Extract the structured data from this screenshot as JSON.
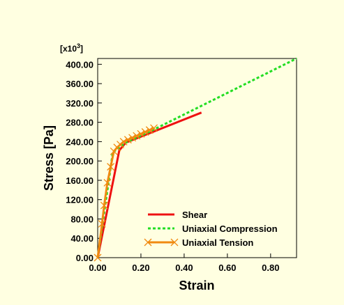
{
  "chart_data": {
    "type": "line",
    "xlabel": "Strain",
    "ylabel": "Stress [Pa]",
    "y_multiplier": {
      "base": "[x10",
      "exponent": "3",
      "close": "]"
    },
    "xlim": [
      0,
      0.92
    ],
    "ylim": [
      0,
      412
    ],
    "x_ticks": [
      0,
      0.2,
      0.4,
      0.6,
      0.8
    ],
    "x_tick_labels": [
      "0.00",
      "0.20",
      "0.40",
      "0.60",
      "0.80"
    ],
    "y_ticks": [
      0,
      40,
      80,
      120,
      160,
      200,
      240,
      280,
      320,
      360,
      400
    ],
    "y_tick_labels": [
      "0.00",
      "40.00",
      "80.00",
      "120.00",
      "160.00",
      "200.00",
      "240.00",
      "280.00",
      "320.00",
      "360.00",
      "400.00"
    ],
    "grid": false,
    "legend_position": "bottom-right",
    "series": [
      {
        "name": "Shear",
        "color": "#ee1111",
        "style": "solid",
        "marker": "none",
        "x": [
          0,
          0.1,
          0.13,
          0.48
        ],
        "y": [
          0,
          222,
          238,
          300
        ]
      },
      {
        "name": "Uniaxial Compression",
        "color": "#22dd22",
        "style": "dotted",
        "marker": "none",
        "x": [
          0,
          0.07,
          0.13,
          0.26,
          0.92
        ],
        "y": [
          0,
          218,
          238,
          265,
          412
        ]
      },
      {
        "name": "Uniaxial Tension",
        "color": "#f08a10",
        "style": "solid",
        "marker": "x",
        "x": [
          0,
          0.02,
          0.03,
          0.045,
          0.06,
          0.075,
          0.09,
          0.105,
          0.12,
          0.14,
          0.16,
          0.18,
          0.2,
          0.22,
          0.24,
          0.26
        ],
        "y": [
          0,
          70,
          108,
          155,
          188,
          220,
          228,
          234,
          240,
          244,
          248,
          252,
          256,
          260,
          264,
          268
        ]
      }
    ]
  }
}
